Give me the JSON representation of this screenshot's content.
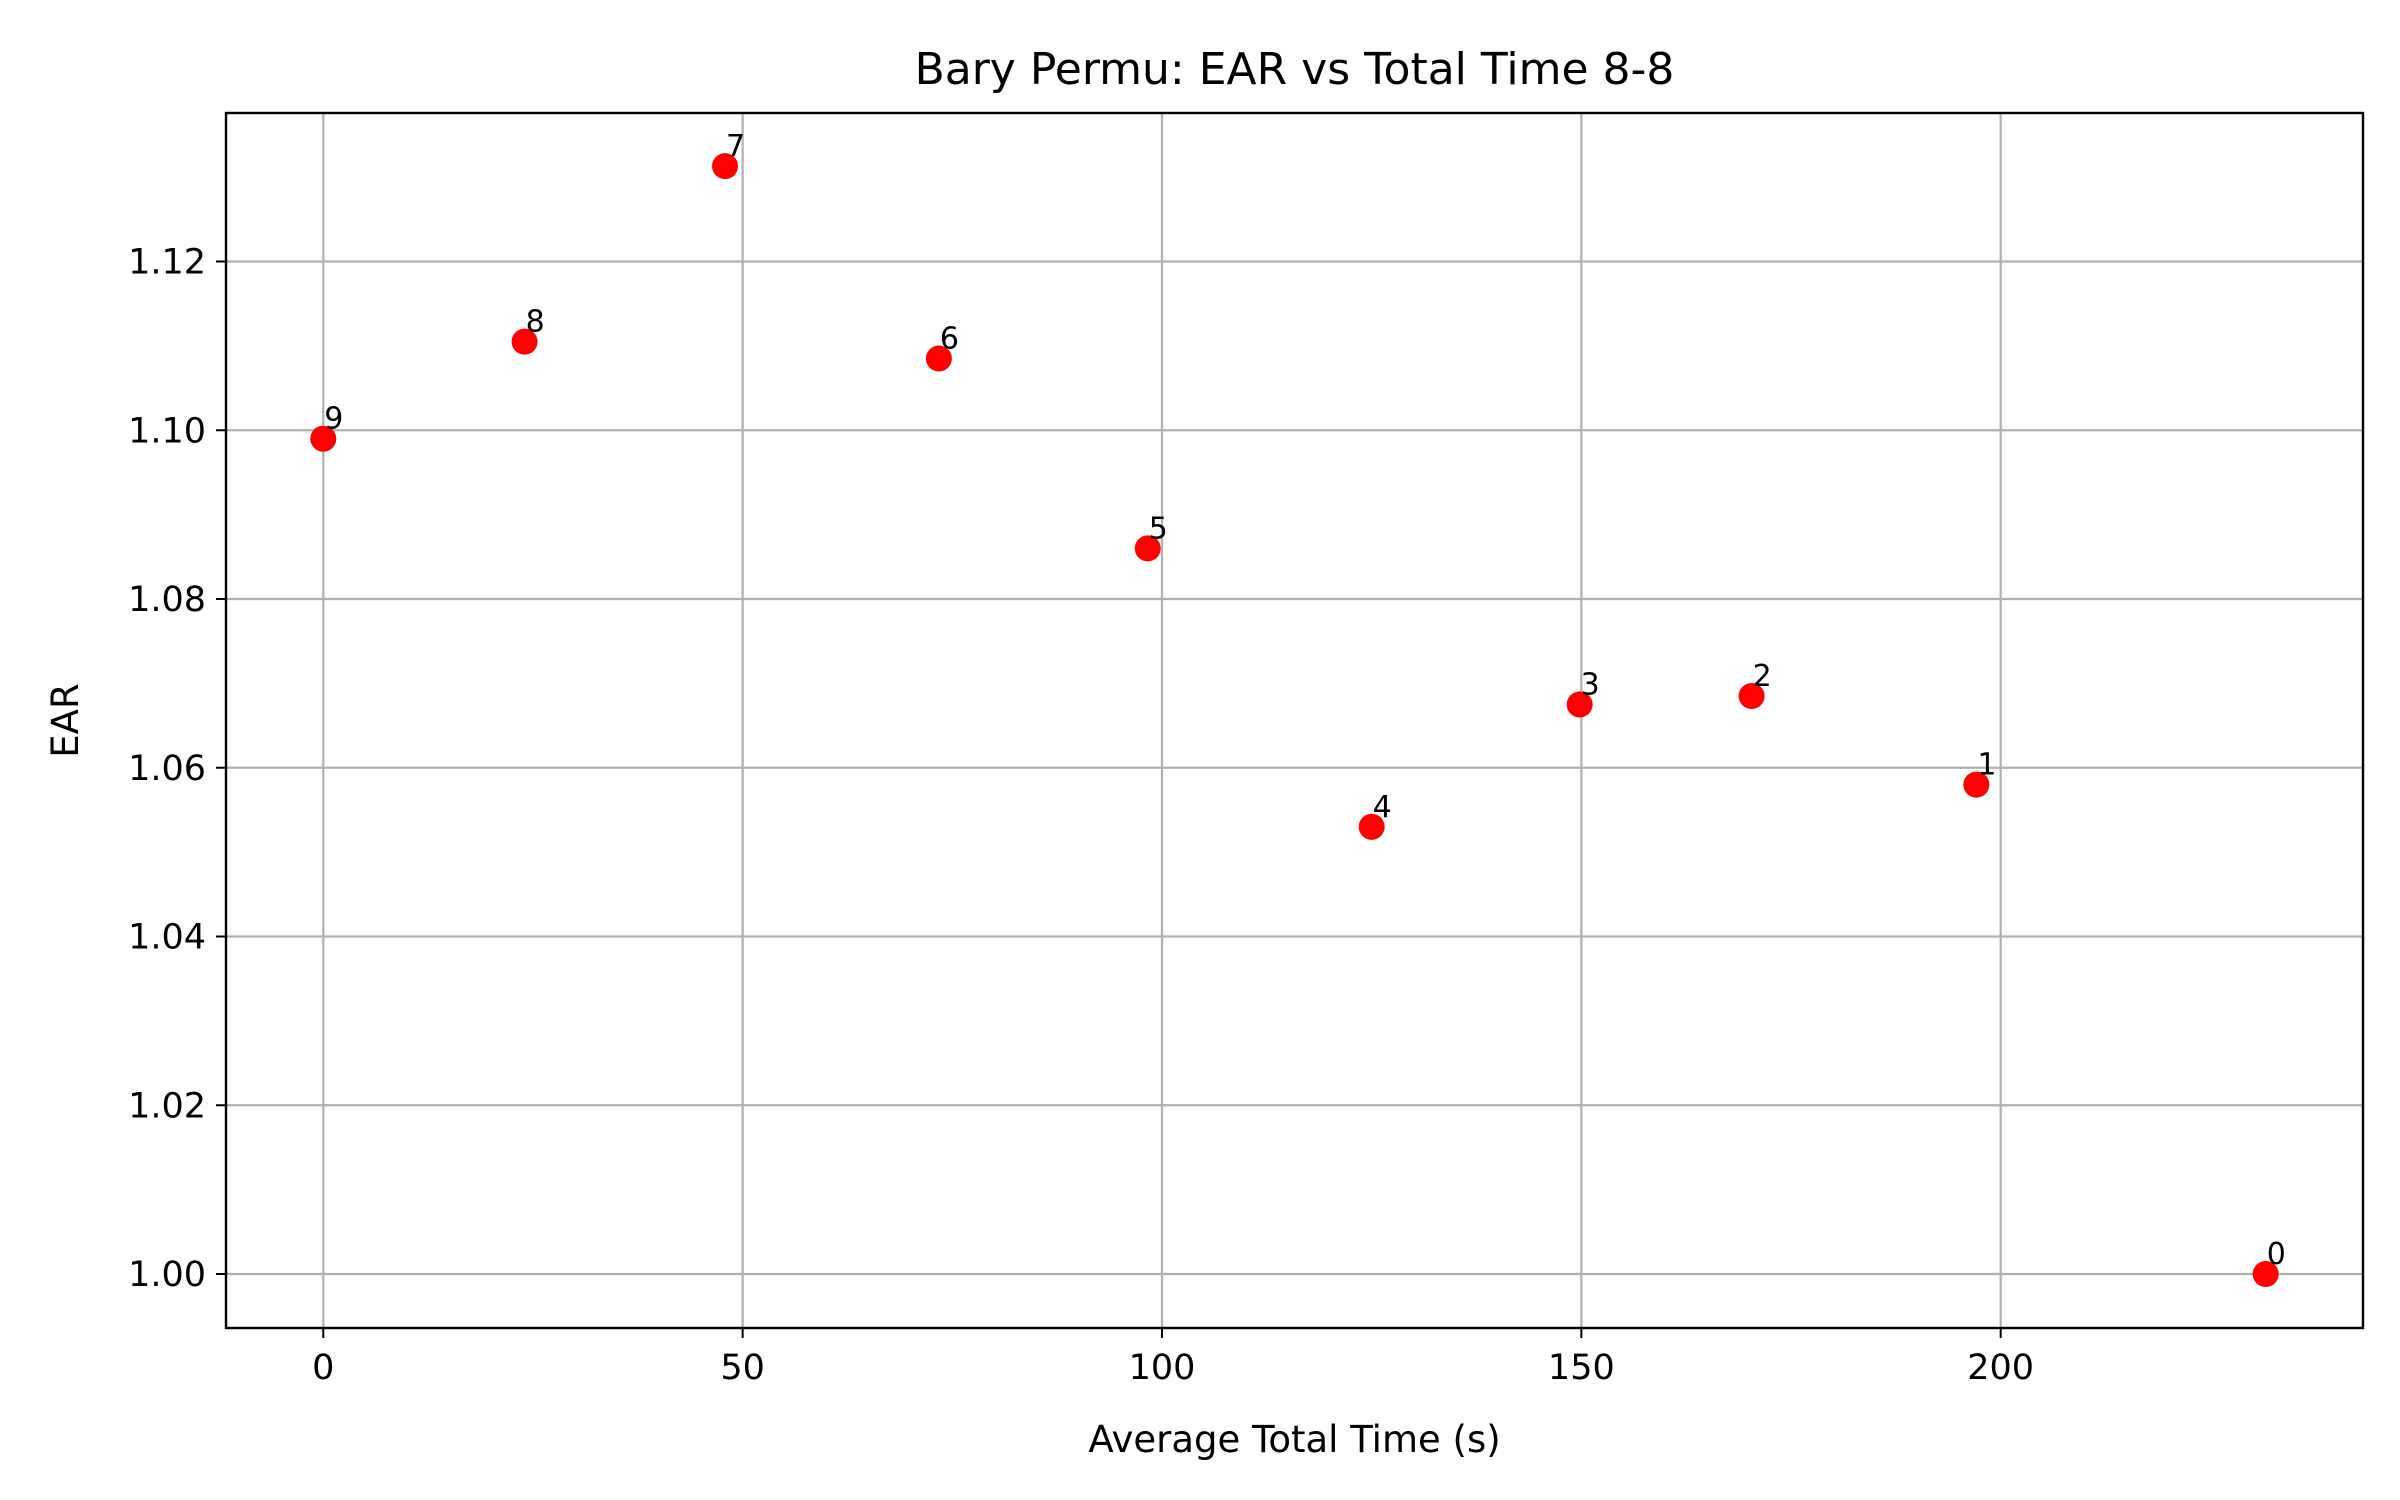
{
  "chart_data": {
    "type": "scatter",
    "title": "Bary Permu: EAR vs Total Time 8-8",
    "xlabel": "Average Total Time (s)",
    "ylabel": "EAR",
    "xlim": [
      -11.6,
      243.2
    ],
    "ylim": [
      0.9936,
      1.1376
    ],
    "xticks": [
      0,
      50,
      100,
      150,
      200
    ],
    "xtick_labels": [
      "0",
      "50",
      "100",
      "150",
      "200"
    ],
    "yticks": [
      1.0,
      1.02,
      1.04,
      1.06,
      1.08,
      1.1,
      1.12
    ],
    "ytick_labels": [
      "1.00",
      "1.02",
      "1.04",
      "1.06",
      "1.08",
      "1.10",
      "1.12"
    ],
    "grid": true,
    "marker_color": "#ff0000",
    "points": [
      {
        "label": "0",
        "x": 231.6,
        "y": 1.0
      },
      {
        "label": "1",
        "x": 197.1,
        "y": 1.058
      },
      {
        "label": "2",
        "x": 170.3,
        "y": 1.0685
      },
      {
        "label": "3",
        "x": 149.8,
        "y": 1.0675
      },
      {
        "label": "4",
        "x": 125.0,
        "y": 1.053
      },
      {
        "label": "5",
        "x": 98.3,
        "y": 1.086
      },
      {
        "label": "6",
        "x": 73.4,
        "y": 1.1085
      },
      {
        "label": "7",
        "x": 47.9,
        "y": 1.1313
      },
      {
        "label": "8",
        "x": 24.0,
        "y": 1.1105
      },
      {
        "label": "9",
        "x": 0.0,
        "y": 1.099
      }
    ]
  }
}
